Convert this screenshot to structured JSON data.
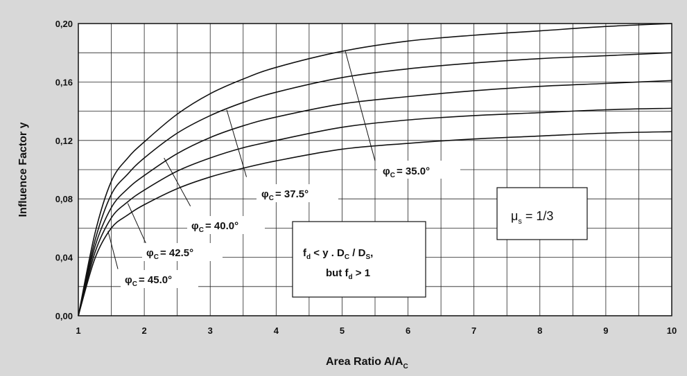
{
  "chart_data": {
    "type": "line",
    "xlabel": "Area Ratio A/A",
    "xlabel_sub": "C",
    "ylabel": "Influence Factor y",
    "xlim": [
      1,
      10
    ],
    "ylim": [
      0,
      0.2
    ],
    "x_ticks": [
      "1",
      "2",
      "3",
      "4",
      "5",
      "6",
      "7",
      "8",
      "9",
      "10"
    ],
    "y_ticks": [
      "0,00",
      "0,04",
      "0,08",
      "0,12",
      "0,16",
      "0,20"
    ],
    "grid": true,
    "x": [
      1,
      1.25,
      1.5,
      1.75,
      2,
      2.5,
      3,
      3.5,
      4,
      5,
      6,
      7,
      8,
      9,
      10
    ],
    "series": [
      {
        "name": "φ_C = 35.0°",
        "values": [
          0,
          0.056,
          0.092,
          0.108,
          0.119,
          0.138,
          0.152,
          0.162,
          0.17,
          0.181,
          0.188,
          0.192,
          0.195,
          0.198,
          0.2
        ]
      },
      {
        "name": "φ_C = 37.5°",
        "values": [
          0,
          0.051,
          0.083,
          0.097,
          0.108,
          0.125,
          0.137,
          0.146,
          0.153,
          0.163,
          0.169,
          0.173,
          0.176,
          0.178,
          0.18
        ]
      },
      {
        "name": "φ_C = 40.0°",
        "values": [
          0,
          0.047,
          0.074,
          0.087,
          0.096,
          0.111,
          0.122,
          0.13,
          0.136,
          0.145,
          0.15,
          0.154,
          0.157,
          0.159,
          0.161
        ]
      },
      {
        "name": "φ_C = 42.5°",
        "values": [
          0,
          0.043,
          0.067,
          0.078,
          0.086,
          0.099,
          0.108,
          0.115,
          0.12,
          0.129,
          0.134,
          0.137,
          0.139,
          0.141,
          0.142
        ]
      },
      {
        "name": "φ_C = 45.0°",
        "values": [
          0,
          0.039,
          0.06,
          0.069,
          0.076,
          0.087,
          0.095,
          0.101,
          0.106,
          0.114,
          0.118,
          0.121,
          0.123,
          0.125,
          0.126
        ]
      }
    ],
    "annotations": {
      "phi_symbol": "φ",
      "phi_sub": "C",
      "labels": [
        {
          "value": "= 35.0°"
        },
        {
          "value": "= 37.5°"
        },
        {
          "value": "= 40.0°"
        },
        {
          "value": "= 42.5°"
        },
        {
          "value": "= 45.0°"
        }
      ],
      "condition_line1": "f",
      "condition_line1_parts": [
        "d",
        " < y . D",
        "C",
        " / D",
        "S",
        ","
      ],
      "condition_line2": "but f",
      "condition_line2_parts": [
        "d",
        " > 1"
      ],
      "mu_symbol": "μ",
      "mu_sub": "s",
      "mu_value": " = 1/3"
    }
  }
}
